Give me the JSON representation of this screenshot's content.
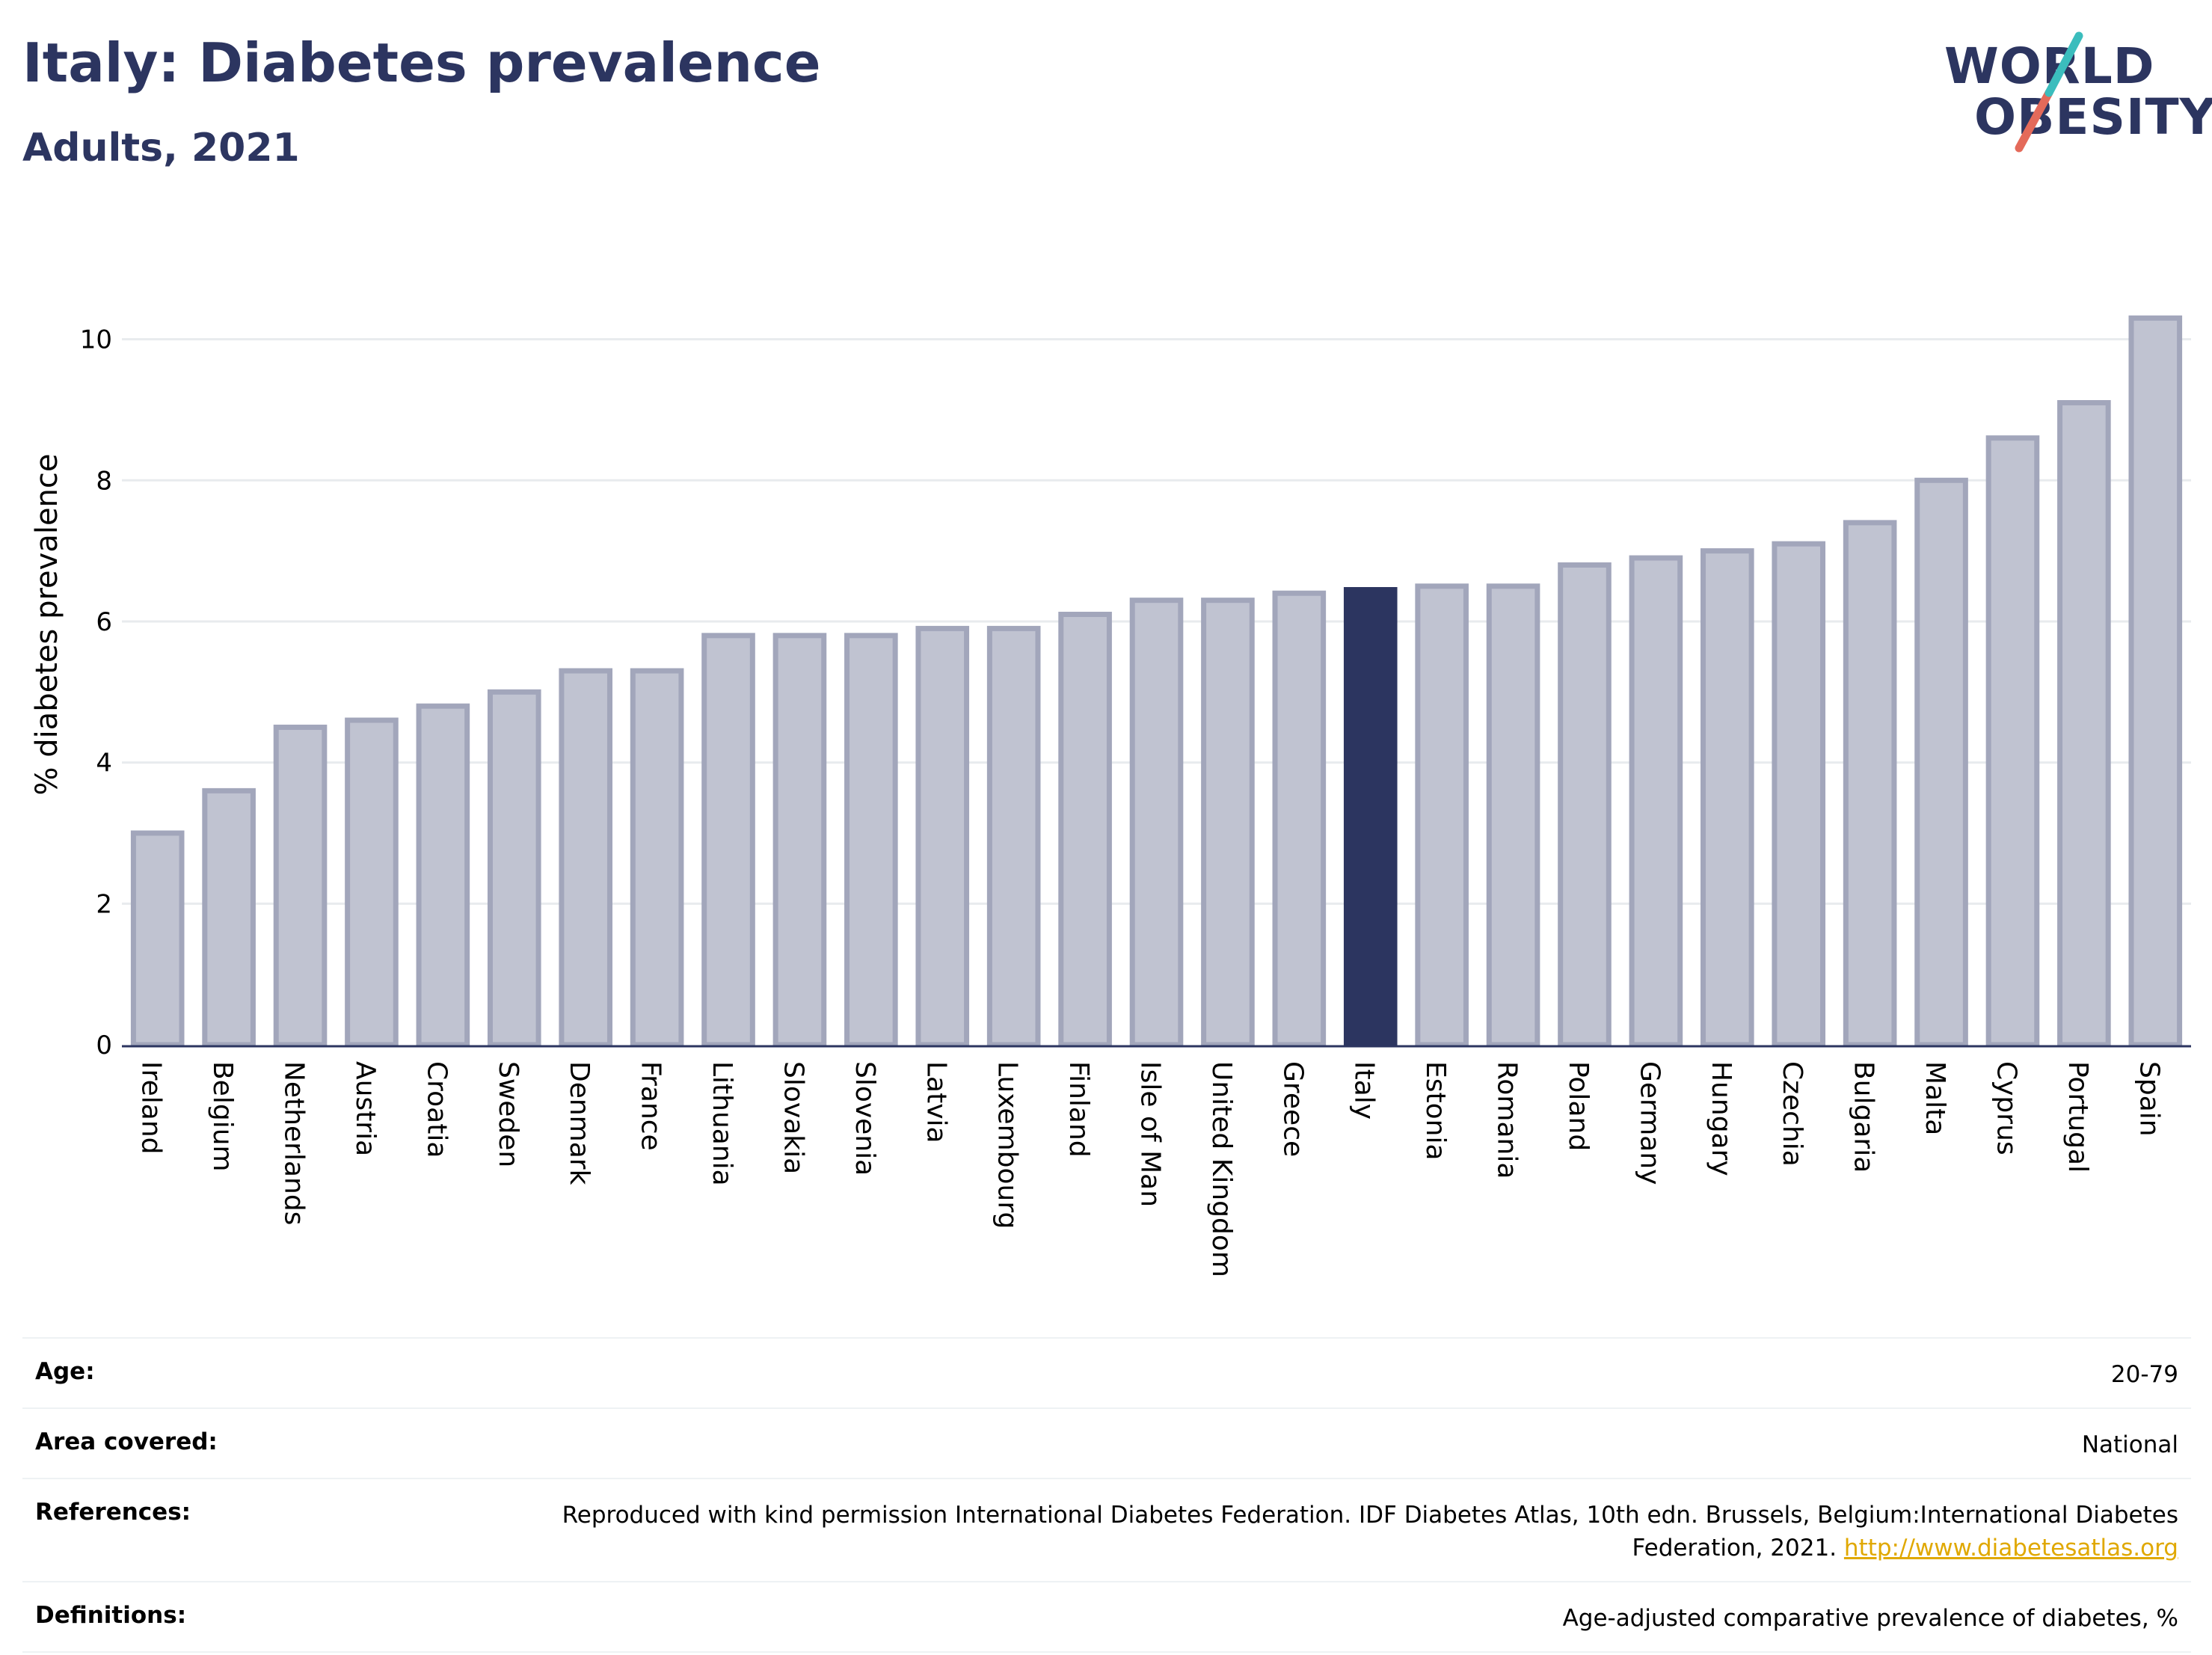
{
  "header": {
    "title": "Italy: Diabetes prevalence",
    "subtitle": "Adults, 2021"
  },
  "logo": {
    "line1": "WORLD",
    "line2": "OBESITY",
    "slash_colors": [
      "#3bbdbd",
      "#e46a5a"
    ]
  },
  "colors": {
    "bar": "#c0c3d1",
    "bar_stroke": "#a2a6bb",
    "highlight": "#2c3560",
    "grid": "#e8ebee",
    "axis": "#2c3560"
  },
  "chart_data": {
    "type": "bar",
    "ylabel": "% diabetes prevalence",
    "ylim": [
      0,
      10.6
    ],
    "yticks": [
      0,
      2,
      4,
      6,
      8,
      10
    ],
    "grid": true,
    "highlight": "Italy",
    "categories": [
      "Ireland",
      "Belgium",
      "Netherlands",
      "Austria",
      "Croatia",
      "Sweden",
      "Denmark",
      "France",
      "Lithuania",
      "Slovakia",
      "Slovenia",
      "Latvia",
      "Luxembourg",
      "Finland",
      "Isle of Man",
      "United Kingdom",
      "Greece",
      "Italy",
      "Estonia",
      "Romania",
      "Poland",
      "Germany",
      "Hungary",
      "Czechia",
      "Bulgaria",
      "Malta",
      "Cyprus",
      "Portugal",
      "Spain"
    ],
    "values": [
      3.0,
      3.6,
      4.5,
      4.6,
      4.8,
      5.0,
      5.3,
      5.3,
      5.8,
      5.8,
      5.8,
      5.9,
      5.9,
      6.1,
      6.3,
      6.3,
      6.4,
      6.45,
      6.5,
      6.5,
      6.8,
      6.9,
      7.0,
      7.1,
      7.4,
      8.0,
      8.6,
      9.1,
      10.3
    ]
  },
  "meta": [
    {
      "key": "Age:",
      "value": "20-79"
    },
    {
      "key": "Area covered:",
      "value": "National"
    },
    {
      "key": "References:",
      "value": "Reproduced with kind permission International Diabetes Federation.  IDF Diabetes Atlas, 10th edn. Brussels, Belgium:International Diabetes Federation, 2021.",
      "link": "http://www.diabetesatlas.org"
    },
    {
      "key": "Definitions:",
      "value": "Age-adjusted comparative prevalence of diabetes, %"
    }
  ]
}
